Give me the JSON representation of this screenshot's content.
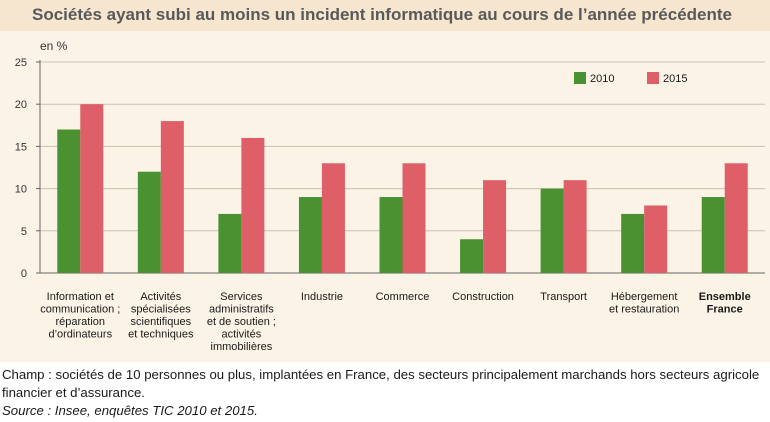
{
  "chart_data": {
    "type": "bar",
    "title": "Sociétés ayant subi au moins un incident informatique au cours de l’année précédente",
    "unit_label": "en %",
    "categories": [
      [
        "Information et",
        "communication ;",
        "réparation",
        "d’ordinateurs"
      ],
      [
        "Activités",
        "spécialisées",
        "scientifiques",
        "et techniques"
      ],
      [
        "Services",
        "administratifs",
        "et de soutien ;",
        "activités",
        "immobilières"
      ],
      [
        "Industrie"
      ],
      [
        "Commerce"
      ],
      [
        "Construction"
      ],
      [
        "Transport"
      ],
      [
        "Hébergement",
        "et restauration"
      ],
      [
        "Ensemble",
        "France"
      ]
    ],
    "bold_categories": [
      8
    ],
    "series": [
      {
        "name": "2010",
        "color": "#4a9131",
        "values": [
          17,
          12,
          7,
          9,
          9,
          4,
          10,
          7,
          9
        ]
      },
      {
        "name": "2015",
        "color": "#de5f68",
        "values": [
          20,
          18,
          16,
          13,
          13,
          11,
          11,
          8,
          13
        ]
      }
    ],
    "ylim": [
      0,
      25
    ],
    "yticks": [
      0,
      5,
      10,
      15,
      20,
      25
    ],
    "grid": true,
    "legend": "top-right"
  },
  "notes": {
    "champ": "Champ : sociétés de 10 personnes ou plus, implantées en France, des secteurs principalement marchands hors secteurs agricole financier et d’assurance.",
    "source": "Source : Insee, enquêtes TIC 2010 et 2015."
  }
}
